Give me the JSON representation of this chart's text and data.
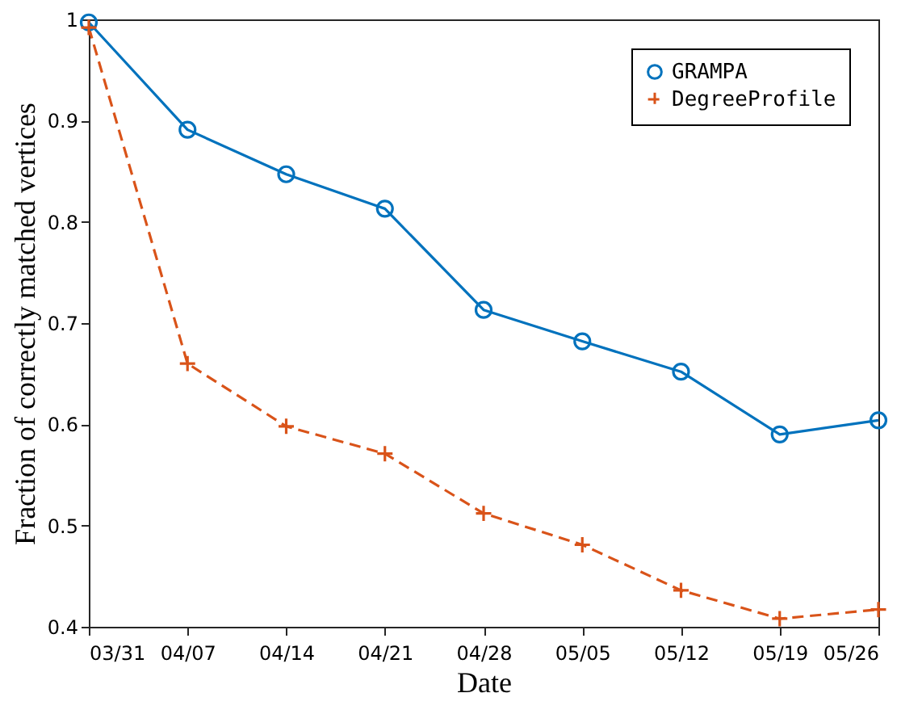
{
  "chart_data": {
    "type": "line",
    "xlabel": "Date",
    "ylabel": "Fraction of correctly matched vertices",
    "categories": [
      "03/31",
      "04/07",
      "04/14",
      "04/21",
      "04/28",
      "05/05",
      "05/12",
      "05/19",
      "05/26"
    ],
    "series": [
      {
        "name": "GRAMPA",
        "color": "#0072bd",
        "marker": "circle",
        "line_style": "solid",
        "values": [
          0.997,
          0.891,
          0.847,
          0.813,
          0.713,
          0.682,
          0.652,
          0.59,
          0.604
        ]
      },
      {
        "name": "DegreeProfile",
        "color": "#d95319",
        "marker": "cross",
        "line_style": "dashed",
        "values": [
          0.992,
          0.66,
          0.598,
          0.571,
          0.512,
          0.481,
          0.436,
          0.408,
          0.417
        ]
      }
    ],
    "ylim": [
      0.4,
      1
    ],
    "yticks": [
      0.4,
      0.5,
      0.6,
      0.7,
      0.8,
      0.9,
      1
    ],
    "grid": false,
    "legend": "top right"
  }
}
